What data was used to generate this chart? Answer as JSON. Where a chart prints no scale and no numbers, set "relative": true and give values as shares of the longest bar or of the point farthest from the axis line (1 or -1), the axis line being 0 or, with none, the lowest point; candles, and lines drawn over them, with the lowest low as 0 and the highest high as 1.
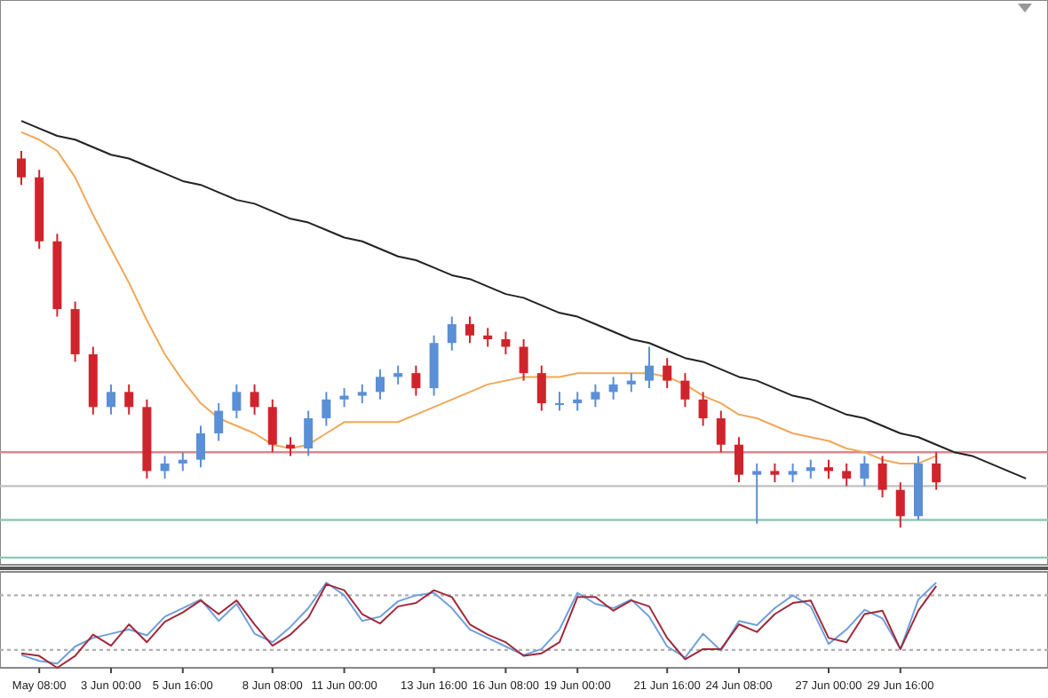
{
  "chart_data": [
    {
      "type": "candlestick",
      "relative": true,
      "tick_labels": false,
      "categories": [
        null,
        null,
        null,
        null,
        null,
        null,
        null,
        null,
        null,
        null,
        null,
        null,
        null,
        null,
        null,
        null,
        null,
        null,
        null,
        null,
        null,
        null,
        null,
        null,
        null,
        null,
        null,
        null,
        null,
        null,
        null,
        null,
        null,
        null,
        null,
        null,
        null,
        null,
        null,
        null,
        null,
        null,
        null,
        null,
        null,
        null,
        null,
        null,
        null,
        null,
        null,
        null,
        null,
        null,
        null,
        null,
        null
      ],
      "ohlc": [
        [
          0.98,
          1.0,
          0.91,
          0.93
        ],
        [
          0.93,
          0.95,
          0.74,
          0.76
        ],
        [
          0.76,
          0.78,
          0.56,
          0.58
        ],
        [
          0.58,
          0.6,
          0.44,
          0.46
        ],
        [
          0.46,
          0.48,
          0.3,
          0.32
        ],
        [
          0.32,
          0.38,
          0.3,
          0.36
        ],
        [
          0.36,
          0.38,
          0.3,
          0.32
        ],
        [
          0.32,
          0.34,
          0.13,
          0.15
        ],
        [
          0.15,
          0.19,
          0.13,
          0.17
        ],
        [
          0.17,
          0.2,
          0.15,
          0.18
        ],
        [
          0.18,
          0.27,
          0.16,
          0.25
        ],
        [
          0.25,
          0.33,
          0.23,
          0.31
        ],
        [
          0.31,
          0.38,
          0.29,
          0.36
        ],
        [
          0.36,
          0.38,
          0.3,
          0.32
        ],
        [
          0.32,
          0.34,
          0.2,
          0.22
        ],
        [
          0.22,
          0.24,
          0.19,
          0.21
        ],
        [
          0.21,
          0.31,
          0.19,
          0.29
        ],
        [
          0.29,
          0.36,
          0.27,
          0.34
        ],
        [
          0.34,
          0.37,
          0.32,
          0.35
        ],
        [
          0.35,
          0.38,
          0.33,
          0.36
        ],
        [
          0.36,
          0.42,
          0.34,
          0.4
        ],
        [
          0.4,
          0.43,
          0.38,
          0.41
        ],
        [
          0.41,
          0.43,
          0.35,
          0.37
        ],
        [
          0.37,
          0.51,
          0.35,
          0.49
        ],
        [
          0.49,
          0.56,
          0.47,
          0.54
        ],
        [
          0.54,
          0.56,
          0.49,
          0.51
        ],
        [
          0.51,
          0.53,
          0.48,
          0.5
        ],
        [
          0.5,
          0.52,
          0.46,
          0.48
        ],
        [
          0.48,
          0.5,
          0.39,
          0.41
        ],
        [
          0.41,
          0.43,
          0.31,
          0.33
        ],
        [
          0.33,
          0.36,
          0.31,
          0.33
        ],
        [
          0.33,
          0.36,
          0.31,
          0.34
        ],
        [
          0.34,
          0.38,
          0.32,
          0.36
        ],
        [
          0.36,
          0.4,
          0.34,
          0.38
        ],
        [
          0.38,
          0.41,
          0.36,
          0.39
        ],
        [
          0.39,
          0.48,
          0.37,
          0.43
        ],
        [
          0.43,
          0.45,
          0.37,
          0.39
        ],
        [
          0.39,
          0.41,
          0.32,
          0.34
        ],
        [
          0.34,
          0.36,
          0.27,
          0.29
        ],
        [
          0.29,
          0.31,
          0.2,
          0.22
        ],
        [
          0.22,
          0.24,
          0.12,
          0.14
        ],
        [
          0.14,
          0.17,
          0.01,
          0.15
        ],
        [
          0.15,
          0.17,
          0.12,
          0.14
        ],
        [
          0.14,
          0.17,
          0.12,
          0.15
        ],
        [
          0.15,
          0.18,
          0.13,
          0.16
        ],
        [
          0.16,
          0.18,
          0.13,
          0.15
        ],
        [
          0.15,
          0.17,
          0.11,
          0.13
        ],
        [
          0.13,
          0.19,
          0.11,
          0.17
        ],
        [
          0.17,
          0.19,
          0.08,
          0.1
        ],
        [
          0.1,
          0.12,
          0.0,
          0.03
        ],
        [
          0.03,
          0.19,
          0.02,
          0.17
        ],
        [
          0.17,
          0.2,
          0.1,
          0.12
        ],
        null,
        null,
        null,
        null,
        null
      ],
      "series": [
        {
          "type": "line",
          "color": "#f0a858",
          "values": [
            1.05,
            1.03,
            1.0,
            0.93,
            0.83,
            0.74,
            0.65,
            0.55,
            0.46,
            0.39,
            0.33,
            0.29,
            0.27,
            0.25,
            0.22,
            0.21,
            0.22,
            0.25,
            0.28,
            0.28,
            0.28,
            0.28,
            0.3,
            0.32,
            0.34,
            0.36,
            0.38,
            0.39,
            0.4,
            0.4,
            0.4,
            0.41,
            0.41,
            0.41,
            0.41,
            0.41,
            0.4,
            0.38,
            0.35,
            0.33,
            0.3,
            0.29,
            0.27,
            0.25,
            0.24,
            0.23,
            0.21,
            0.2,
            0.18,
            0.17,
            0.17,
            0.19,
            null,
            null,
            null,
            null,
            null
          ]
        },
        {
          "type": "line",
          "color": "#222222",
          "values": [
            1.08,
            1.06,
            1.04,
            1.03,
            1.01,
            0.99,
            0.98,
            0.96,
            0.94,
            0.92,
            0.91,
            0.89,
            0.87,
            0.86,
            0.84,
            0.82,
            0.81,
            0.79,
            0.77,
            0.76,
            0.74,
            0.72,
            0.71,
            0.69,
            0.67,
            0.66,
            0.64,
            0.62,
            0.61,
            0.59,
            0.57,
            0.56,
            0.54,
            0.52,
            0.5,
            0.49,
            0.47,
            0.45,
            0.44,
            0.42,
            0.4,
            0.39,
            0.37,
            0.35,
            0.34,
            0.32,
            0.3,
            0.29,
            0.27,
            0.25,
            0.24,
            0.22,
            0.2,
            0.19,
            0.17,
            0.15,
            0.13
          ]
        }
      ],
      "ref_lines": [
        {
          "axis": "y",
          "value": 0.2,
          "color": "#d88890"
        },
        {
          "axis": "y",
          "value": 0.11,
          "color": "#c0c0c0"
        },
        {
          "axis": "y",
          "value": 0.02,
          "color": "#90c8b8"
        },
        {
          "axis": "y",
          "value": -0.08,
          "color": "#90c8b8"
        }
      ]
    },
    {
      "type": "line",
      "relative": true,
      "tick_labels": "x",
      "line_style": "solid",
      "marker": "none",
      "categories": [
        null,
        "May 08:00",
        null,
        null,
        null,
        "3 Jun 00:00",
        null,
        null,
        null,
        "5 Jun 16:00",
        null,
        null,
        null,
        null,
        "8 Jun 08:00",
        null,
        null,
        null,
        "11 Jun 00:00",
        null,
        null,
        null,
        null,
        "13 Jun 16:00",
        null,
        null,
        null,
        "16 Jun 08:00",
        null,
        null,
        null,
        "19 Jun 00:00",
        null,
        null,
        null,
        null,
        "21 Jun 16:00",
        null,
        null,
        null,
        "24 Jun 08:00",
        null,
        null,
        null,
        null,
        "27 Jun 00:00",
        null,
        null,
        null,
        "29 Jun 16:00",
        null,
        null,
        null,
        null,
        null,
        null,
        null
      ],
      "series": [
        {
          "color": "#6fa0dc",
          "values": [
            0.15,
            0.08,
            0.05,
            0.25,
            0.35,
            0.4,
            0.45,
            0.38,
            0.6,
            0.7,
            0.8,
            0.55,
            0.75,
            0.4,
            0.3,
            0.48,
            0.7,
            1.0,
            0.85,
            0.55,
            0.6,
            0.78,
            0.85,
            0.88,
            0.7,
            0.45,
            0.35,
            0.25,
            0.15,
            0.22,
            0.45,
            0.88,
            0.75,
            0.7,
            0.8,
            0.6,
            0.25,
            0.12,
            0.4,
            0.2,
            0.55,
            0.5,
            0.7,
            0.85,
            0.72,
            0.28,
            0.45,
            0.68,
            0.58,
            0.22,
            0.8,
            1.0,
            null,
            null,
            null,
            null,
            null
          ]
        },
        {
          "color": "#a0283a",
          "values": [
            0.17,
            0.14,
            0.0,
            0.14,
            0.39,
            0.26,
            0.51,
            0.3,
            0.54,
            0.65,
            0.79,
            0.63,
            0.79,
            0.51,
            0.26,
            0.39,
            0.59,
            0.98,
            0.91,
            0.63,
            0.52,
            0.72,
            0.76,
            0.91,
            0.83,
            0.51,
            0.39,
            0.3,
            0.14,
            0.17,
            0.3,
            0.83,
            0.83,
            0.67,
            0.79,
            0.72,
            0.35,
            0.1,
            0.22,
            0.22,
            0.51,
            0.42,
            0.63,
            0.76,
            0.79,
            0.35,
            0.3,
            0.63,
            0.67,
            0.22,
            0.67,
            0.96,
            null,
            null,
            null,
            null,
            null
          ]
        }
      ],
      "ref_lines": [
        {
          "axis": "y",
          "value": 0.85,
          "color": "#b0b0b0",
          "line_style": "dotted"
        },
        {
          "axis": "y",
          "value": 0.21,
          "color": "#b0b0b0",
          "line_style": "dotted"
        }
      ]
    }
  ]
}
